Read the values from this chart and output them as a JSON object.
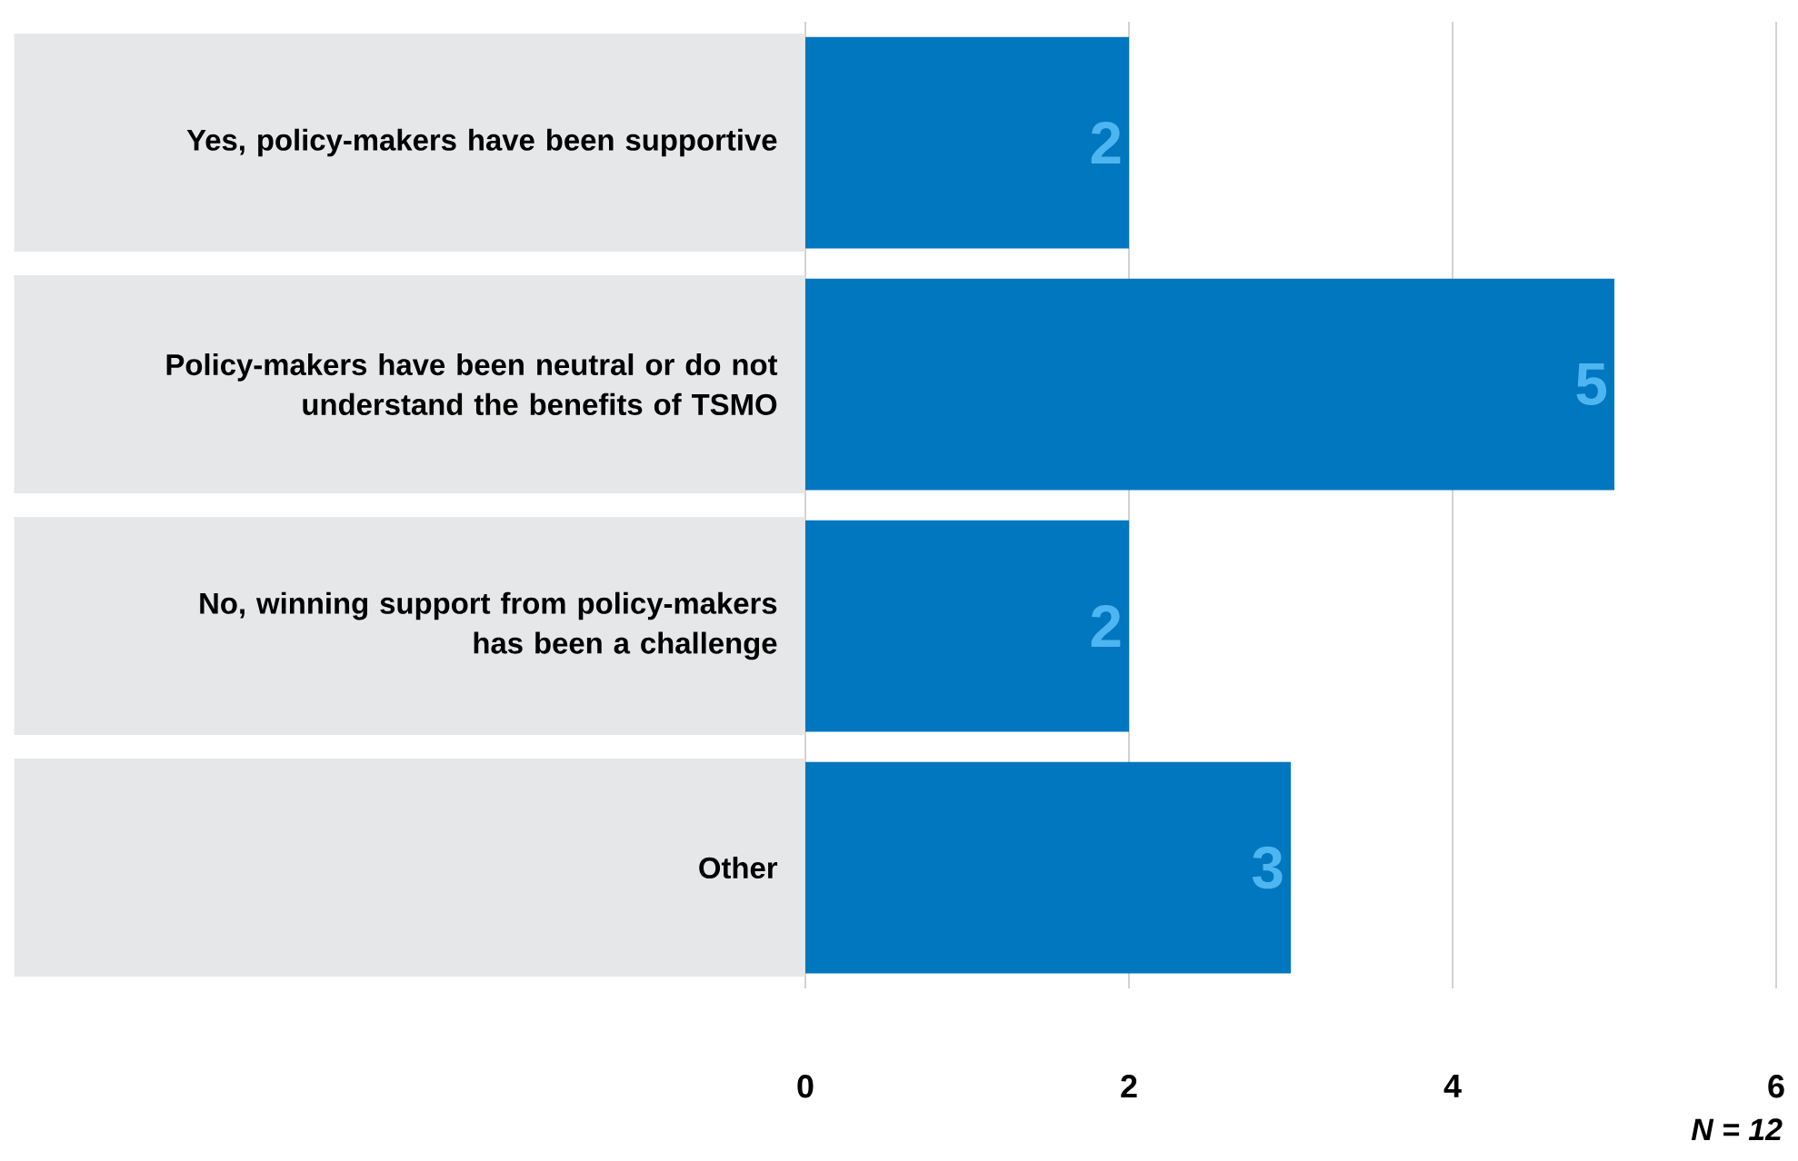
{
  "chart_data": {
    "type": "bar",
    "orientation": "horizontal",
    "categories": [
      "Yes, policy-makers have been supportive",
      "Policy-makers have been neutral or do not understand the benefits of TSMO",
      "No, winning support from policy-makers has been a challenge",
      "Other"
    ],
    "values": [
      2,
      5,
      2,
      3
    ],
    "color": "#0077bf",
    "xlim": [
      0,
      6
    ],
    "xticks": [
      0,
      2,
      4,
      6
    ],
    "grid": "x",
    "data_labels": true,
    "annotations": [
      "N = 12"
    ]
  }
}
